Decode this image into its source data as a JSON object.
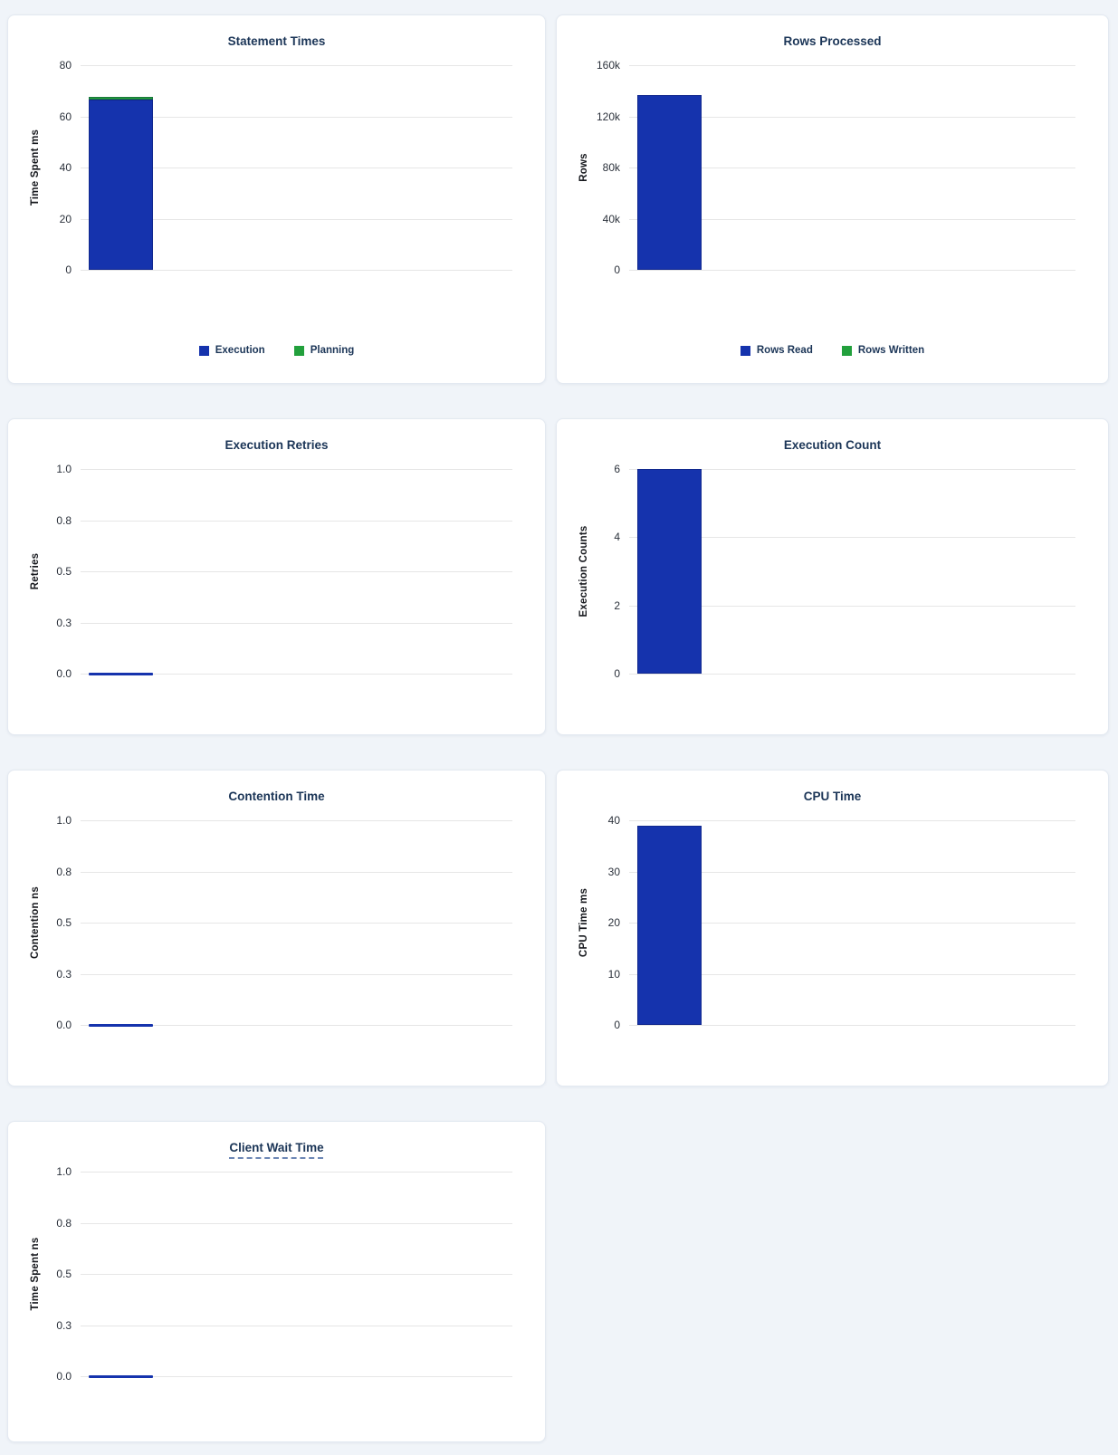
{
  "page": {
    "background_color": "#f0f4f9",
    "card_background": "#ffffff"
  },
  "colors": {
    "bar_blue": "#1533ad",
    "bar_green": "#22a03c",
    "title_navy": "#1b3557",
    "gridline": "#e6e6e6"
  },
  "chart_data": [
    {
      "type": "bar",
      "title": "Statement Times",
      "ylabel": "Time Spent ms",
      "yticks": [
        "80",
        "60",
        "40",
        "20",
        "0"
      ],
      "ylim": [
        0,
        80
      ],
      "grid": "horizontal",
      "legend": true,
      "legend_position": "bottom",
      "stacked": true,
      "series": [
        {
          "name": "Execution",
          "color": "#1533ad",
          "value": 66.5
        },
        {
          "name": "Planning",
          "color": "#22a03c",
          "value": 1.0
        }
      ]
    },
    {
      "type": "bar",
      "title": "Rows Processed",
      "ylabel": "Rows",
      "yticks": [
        "160k",
        "120k",
        "80k",
        "40k",
        "0"
      ],
      "ylim": [
        0,
        160000
      ],
      "grid": "horizontal",
      "legend": true,
      "legend_position": "bottom",
      "stacked": true,
      "series": [
        {
          "name": "Rows Read",
          "color": "#1533ad",
          "value": 137000
        },
        {
          "name": "Rows Written",
          "color": "#22a03c",
          "value": 0
        }
      ]
    },
    {
      "type": "bar",
      "title": "Execution Retries",
      "ylabel": "Retries",
      "yticks": [
        "1.0",
        "0.8",
        "0.5",
        "0.3",
        "0.0"
      ],
      "ylim": [
        0,
        1
      ],
      "grid": "horizontal",
      "legend": false,
      "series": [
        {
          "color": "#1533ad",
          "value": 0
        }
      ]
    },
    {
      "type": "bar",
      "title": "Execution Count",
      "ylabel": "Execution Counts",
      "yticks": [
        "6",
        "4",
        "2",
        "0"
      ],
      "ylim": [
        0,
        6
      ],
      "grid": "horizontal",
      "legend": false,
      "series": [
        {
          "color": "#1533ad",
          "value": 6
        }
      ]
    },
    {
      "type": "bar",
      "title": "Contention Time",
      "ylabel": "Contention ns",
      "yticks": [
        "1.0",
        "0.8",
        "0.5",
        "0.3",
        "0.0"
      ],
      "ylim": [
        0,
        1
      ],
      "grid": "horizontal",
      "legend": false,
      "series": [
        {
          "color": "#1533ad",
          "value": 0
        }
      ]
    },
    {
      "type": "bar",
      "title": "CPU Time",
      "ylabel": "CPU Time ms",
      "yticks": [
        "40",
        "30",
        "20",
        "10",
        "0"
      ],
      "ylim": [
        0,
        40
      ],
      "grid": "horizontal",
      "legend": false,
      "series": [
        {
          "color": "#1533ad",
          "value": 39
        }
      ]
    },
    {
      "type": "bar",
      "title": "Client Wait Time",
      "title_underline": "dashed",
      "ylabel": "Time Spent ns",
      "yticks": [
        "1.0",
        "0.8",
        "0.5",
        "0.3",
        "0.0"
      ],
      "ylim": [
        0,
        1
      ],
      "grid": "horizontal",
      "legend": false,
      "series": [
        {
          "color": "#1533ad",
          "value": 0
        }
      ]
    }
  ]
}
